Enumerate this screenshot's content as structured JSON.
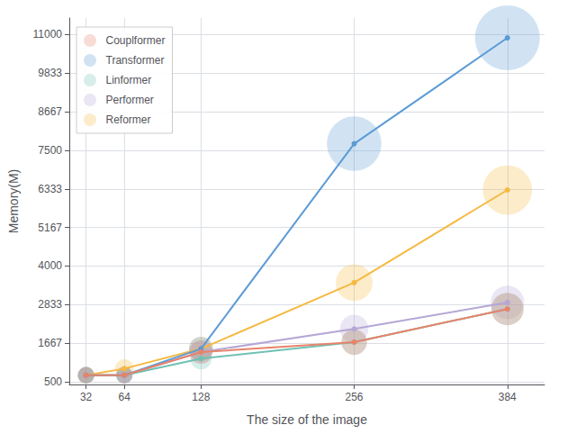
{
  "chart_data": {
    "type": "bubble",
    "x": [
      32,
      64,
      128,
      256,
      384
    ],
    "series": [
      {
        "name": "Couplformer",
        "color": "#E8836A",
        "values": [
          700,
          700,
          1400,
          1700,
          2700
        ]
      },
      {
        "name": "Transformer",
        "color": "#5B9BD5",
        "values": [
          700,
          700,
          1500,
          7700,
          10900
        ]
      },
      {
        "name": "Linformer",
        "color": "#70C1B3",
        "values": [
          700,
          700,
          1200,
          1700,
          2700
        ]
      },
      {
        "name": "Performer",
        "color": "#B5A7D5",
        "values": [
          700,
          700,
          1400,
          2100,
          2900
        ]
      },
      {
        "name": "Reformer",
        "color": "#F5B942",
        "values": [
          700,
          900,
          1500,
          3500,
          6300
        ]
      }
    ],
    "xlabel": "The size of the image",
    "ylabel": "Memory(M)",
    "xlim": [
      18,
      415
    ],
    "xticks": [
      32,
      64,
      128,
      256,
      384
    ],
    "ylim": [
      420,
      11500
    ],
    "yticks": [
      500,
      1667,
      2833,
      4000,
      5167,
      6333,
      7500,
      8667,
      9833,
      11000
    ],
    "marker": "circle",
    "grid": true,
    "legend": "upper left"
  }
}
